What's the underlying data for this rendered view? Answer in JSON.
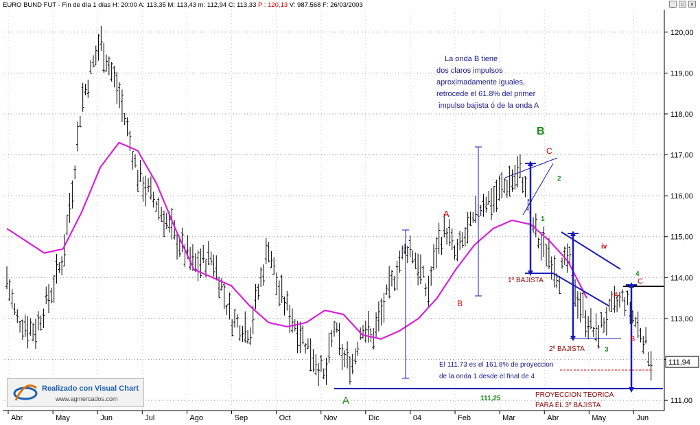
{
  "header": {
    "symbol": "EURO BUND FUT",
    "period": "Fin de día 1 días",
    "time": "H: 20:00",
    "open": "A: 113,35",
    "high": "M: 113,43",
    "low": "m: 112,94",
    "close": "C: 113,33",
    "p_value": "P : 120,13",
    "volume": "V: 987.568",
    "date": "F: 26/03/2003"
  },
  "window_buttons": [
    "_",
    "□",
    "×"
  ],
  "logo": {
    "title": "Realizado con Visual Chart",
    "url": "www.agmercados.com"
  },
  "chart_data": {
    "type": "ohlc-bar",
    "x_labels": [
      "Abr",
      "May",
      "Jun",
      "Jul",
      "Ago",
      "Sep",
      "Oct",
      "Nov",
      "Dic",
      "04",
      "Feb",
      "Mar",
      "Abr",
      "May",
      "Jun"
    ],
    "y_ticks": [
      "111,00",
      "112,00",
      "113,00",
      "114,00",
      "115,00",
      "116,00",
      "117,00",
      "118,00",
      "119,00",
      "120,00"
    ],
    "ylim": [
      110.75,
      120.55
    ],
    "last_price": "111,94",
    "price_path": [
      [
        0,
        114.0
      ],
      [
        1,
        113.0
      ],
      [
        3,
        112.7
      ],
      [
        5,
        113.8
      ],
      [
        6,
        114.5
      ],
      [
        7,
        116.2
      ],
      [
        8,
        118.3
      ],
      [
        10,
        119.8
      ],
      [
        12,
        118.5
      ],
      [
        13,
        117.5
      ],
      [
        14,
        116.5
      ],
      [
        16,
        115.8
      ],
      [
        18,
        115.0
      ],
      [
        20,
        114.3
      ],
      [
        22,
        114.5
      ],
      [
        24,
        113.0
      ],
      [
        26,
        112.7
      ],
      [
        27,
        113.8
      ],
      [
        28,
        114.8
      ],
      [
        29,
        113.7
      ],
      [
        31,
        112.8
      ],
      [
        33,
        112.0
      ],
      [
        34,
        111.5
      ],
      [
        35,
        112.8
      ],
      [
        36,
        112.0
      ],
      [
        37,
        111.9
      ],
      [
        38,
        112.9
      ],
      [
        39,
        112.5
      ],
      [
        40,
        113.1
      ],
      [
        42,
        114.4
      ],
      [
        43,
        114.8
      ],
      [
        44,
        114.3
      ],
      [
        45,
        113.6
      ],
      [
        46,
        114.8
      ],
      [
        47,
        115.2
      ],
      [
        48,
        114.5
      ],
      [
        49,
        115.0
      ],
      [
        50,
        115.4
      ],
      [
        51,
        115.9
      ],
      [
        52,
        115.9
      ],
      [
        53,
        116.2
      ],
      [
        54,
        116.4
      ],
      [
        55,
        116.6
      ],
      [
        56,
        115.5
      ],
      [
        57,
        114.8
      ],
      [
        58,
        114.6
      ],
      [
        59,
        114.0
      ],
      [
        60,
        114.5
      ],
      [
        61,
        113.5
      ],
      [
        62,
        113.0
      ],
      [
        63,
        112.6
      ],
      [
        64,
        113.0
      ],
      [
        65,
        113.3
      ],
      [
        66,
        113.5
      ],
      [
        67,
        113.0
      ],
      [
        68,
        112.6
      ],
      [
        69,
        111.9
      ]
    ],
    "moving_average": [
      [
        0,
        115.2
      ],
      [
        2,
        114.9
      ],
      [
        4,
        114.6
      ],
      [
        6,
        114.7
      ],
      [
        8,
        115.6
      ],
      [
        10,
        116.7
      ],
      [
        12,
        117.3
      ],
      [
        14,
        117.1
      ],
      [
        16,
        116.3
      ],
      [
        18,
        115.2
      ],
      [
        20,
        114.2
      ],
      [
        22,
        114.0
      ],
      [
        24,
        113.8
      ],
      [
        26,
        113.3
      ],
      [
        28,
        112.9
      ],
      [
        30,
        112.8
      ],
      [
        32,
        112.9
      ],
      [
        34,
        113.2
      ],
      [
        36,
        113.1
      ],
      [
        38,
        112.6
      ],
      [
        40,
        112.5
      ],
      [
        42,
        112.7
      ],
      [
        44,
        113.0
      ],
      [
        46,
        113.5
      ],
      [
        48,
        114.2
      ],
      [
        50,
        114.8
      ],
      [
        52,
        115.2
      ],
      [
        54,
        115.4
      ],
      [
        56,
        115.3
      ],
      [
        58,
        114.9
      ],
      [
        60,
        114.4
      ],
      [
        62,
        113.5
      ]
    ],
    "annotations": {
      "note_wave_b": [
        "La onda B tiene",
        "dos claros impulsos",
        "aproximadamente iguales,",
        "retrocede el 61.8% del primer",
        " impulso bajista ó de la onda A"
      ],
      "wave_labels": [
        "A",
        "B",
        "A",
        "B",
        "C",
        "1",
        "2",
        "iv",
        "A",
        "C",
        "4",
        "B",
        "3"
      ],
      "first_bearish": "1º BAJISTA",
      "second_bearish": "2º BAJISTA",
      "projection_note": [
        "El 111.73 es el 161.8% de proyeccion",
        "de la onda 1 desde el final de 4"
      ],
      "support_level": "111,25",
      "theoretical_projection": [
        "PROYECCION TEORICA",
        "PARA EL 3º BAJISTA"
      ]
    },
    "colors": {
      "price_bars": "#000000",
      "moving_average": "#d820d8",
      "trend_lines": "#1a1ab8",
      "wave_a_b": "#1a8a1a",
      "wave_abc_red": "#d40000",
      "text_blue": "#1a1a8c"
    }
  }
}
